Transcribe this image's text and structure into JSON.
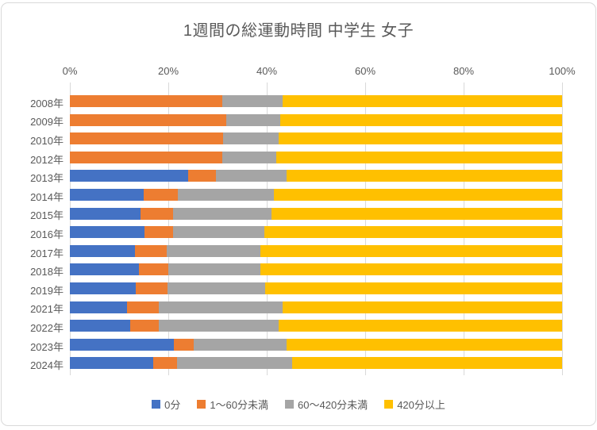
{
  "chart_data": {
    "type": "bar",
    "orientation": "horizontal",
    "stacked": true,
    "title": "1週間の総運動時間 中学生 女子",
    "categories": [
      "2008年",
      "2009年",
      "2010年",
      "2012年",
      "2013年",
      "2014年",
      "2015年",
      "2016年",
      "2017年",
      "2018年",
      "2019年",
      "2021年",
      "2022年",
      "2023年",
      "2024年"
    ],
    "series": [
      {
        "name": "0分",
        "color": "#4472C4",
        "values": [
          0,
          0,
          0,
          0,
          24.0,
          15.0,
          14.3,
          15.1,
          13.2,
          14.0,
          13.4,
          11.6,
          12.3,
          21.1,
          17.0
        ]
      },
      {
        "name": "1〜60分未満",
        "color": "#ED7D31",
        "values": [
          31.0,
          31.8,
          31.1,
          31.0,
          5.7,
          7.0,
          6.7,
          5.9,
          6.4,
          6.0,
          6.4,
          6.4,
          5.8,
          4.0,
          4.8
        ]
      },
      {
        "name": "60〜420分未満",
        "color": "#A5A5A5",
        "values": [
          12.3,
          11.0,
          11.3,
          11.0,
          14.4,
          19.5,
          20.0,
          18.5,
          19.1,
          18.7,
          19.8,
          25.2,
          24.3,
          18.9,
          23.3
        ]
      },
      {
        "name": "420分以上",
        "color": "#FFC000",
        "values": [
          56.7,
          57.2,
          57.6,
          58.0,
          55.9,
          58.5,
          59.0,
          60.5,
          61.3,
          61.3,
          60.4,
          56.8,
          57.6,
          56.0,
          54.9
        ]
      }
    ],
    "x_axis": {
      "min": 0,
      "max": 100,
      "tick_labels": [
        "0%",
        "20%",
        "40%",
        "60%",
        "80%",
        "100%"
      ]
    },
    "grid": true,
    "legend_position": "bottom"
  },
  "colors": {
    "text": "#595959",
    "gridline": "#d9d9d9",
    "frame_border": "#d9d9d9",
    "top_edge_strip": "#d4d4d4",
    "bottom_edge_strip": "#bfbfbf",
    "background": "#ffffff"
  }
}
